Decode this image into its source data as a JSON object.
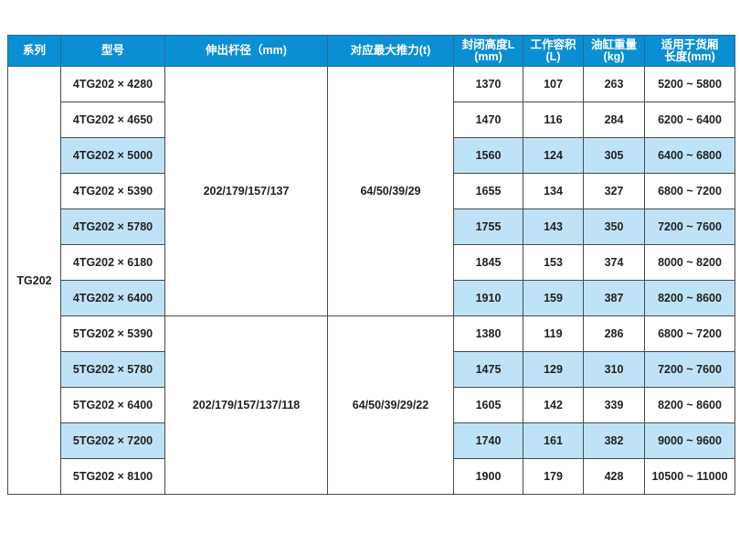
{
  "header": [
    "系列",
    "型号",
    "伸出杆径（mm)",
    "对应最大推力(t)",
    "封闭高度L\n(mm)",
    "工作容积 (L)",
    "油缸重量(kg)",
    "适用于货厢\n长度(mm)"
  ],
  "series": "TG202",
  "groups": [
    {
      "rod": "202/179/157/137",
      "force": "64/50/39/29"
    },
    {
      "rod": "202/179/157/137/118",
      "force": "64/50/39/29/22"
    }
  ],
  "rows": [
    {
      "model": "4TG202 × 4280",
      "height": "1370",
      "volume": "107",
      "weight": "263",
      "length": "5200 ~ 5800",
      "highlight": false
    },
    {
      "model": "4TG202 × 4650",
      "height": "1470",
      "volume": "116",
      "weight": "284",
      "length": "6200 ~ 6400",
      "highlight": false
    },
    {
      "model": "4TG202 × 5000",
      "height": "1560",
      "volume": "124",
      "weight": "305",
      "length": "6400 ~ 6800",
      "highlight": true
    },
    {
      "model": "4TG202 × 5390",
      "height": "1655",
      "volume": "134",
      "weight": "327",
      "length": "6800 ~ 7200",
      "highlight": false
    },
    {
      "model": "4TG202 × 5780",
      "height": "1755",
      "volume": "143",
      "weight": "350",
      "length": "7200 ~ 7600",
      "highlight": true
    },
    {
      "model": "4TG202 × 6180",
      "height": "1845",
      "volume": "153",
      "weight": "374",
      "length": "8000 ~ 8200",
      "highlight": false
    },
    {
      "model": "4TG202 × 6400",
      "height": "1910",
      "volume": "159",
      "weight": "387",
      "length": "8200 ~ 8600",
      "highlight": true
    },
    {
      "model": "5TG202 × 5390",
      "height": "1380",
      "volume": "119",
      "weight": "286",
      "length": "6800 ~ 7200",
      "highlight": false
    },
    {
      "model": "5TG202 × 5780",
      "height": "1475",
      "volume": "129",
      "weight": "310",
      "length": "7200 ~ 7600",
      "highlight": true
    },
    {
      "model": "5TG202 × 6400",
      "height": "1605",
      "volume": "142",
      "weight": "339",
      "length": "8200 ~ 8600",
      "highlight": false
    },
    {
      "model": "5TG202 × 7200",
      "height": "1740",
      "volume": "161",
      "weight": "382",
      "length": "9000 ~ 9600",
      "highlight": true
    },
    {
      "model": "5TG202 × 8100",
      "height": "1900",
      "volume": "179",
      "weight": "428",
      "length": "10500 ~ 11000",
      "highlight": false
    }
  ],
  "colors": {
    "header": "#0b8fd4",
    "highlight": "#bfe3f6"
  }
}
